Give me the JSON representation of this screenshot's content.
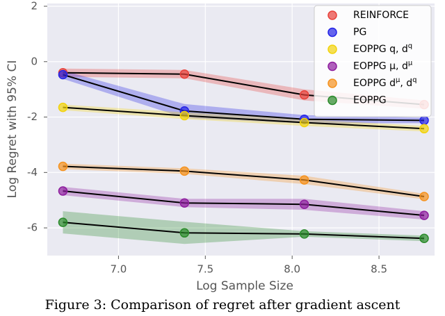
{
  "chart_data": {
    "type": "line",
    "xlabel": "Log Sample Size",
    "ylabel": "Log Regret with 95% CI",
    "caption": "Figure 3: Comparison of regret after gradient ascent",
    "x": [
      6.68,
      7.38,
      8.07,
      8.76
    ],
    "xlim": [
      6.59,
      8.82
    ],
    "xticks": [
      {
        "value": 7.0,
        "label": "7.0"
      },
      7.5,
      {
        "value": 8.0,
        "label": "8.0"
      },
      8.5
    ],
    "ylim": [
      -7,
      2.1
    ],
    "yticks": [
      2,
      0,
      -2,
      -4,
      -6
    ],
    "grid": true,
    "legend": "upper right",
    "series": [
      {
        "name": "REINFORCE",
        "color": "#e8413a",
        "values": [
          -0.4,
          -0.45,
          -1.2,
          -1.55
        ],
        "ci": [
          0.15,
          0.15,
          0.2,
          0.15
        ]
      },
      {
        "name": "PG",
        "color": "#2323e6",
        "values": [
          -0.47,
          -1.78,
          -2.08,
          -2.12
        ],
        "ci": [
          0.15,
          0.25,
          0.15,
          0.1
        ]
      },
      {
        "name": "EOPPG q, dq",
        "color": "#f2d30c",
        "values": [
          -1.65,
          -1.95,
          -2.2,
          -2.42
        ],
        "ci": [
          0.1,
          0.12,
          0.12,
          0.1
        ]
      },
      {
        "name": "EOPPG μ, dμ",
        "color": "#8e1e9e",
        "values": [
          -4.67,
          -5.1,
          -5.15,
          -5.55
        ],
        "ci": [
          0.15,
          0.15,
          0.2,
          0.15
        ]
      },
      {
        "name": "EOPPG dμ, dq",
        "color": "#f5921e",
        "values": [
          -3.78,
          -3.95,
          -4.27,
          -4.87
        ],
        "ci": [
          0.1,
          0.1,
          0.15,
          0.1
        ]
      },
      {
        "name": "EOPPG",
        "color": "#2a8a2a",
        "values": [
          -5.8,
          -6.18,
          -6.22,
          -6.38
        ],
        "ci": [
          0.4,
          0.4,
          0.1,
          0.1
        ]
      }
    ]
  }
}
